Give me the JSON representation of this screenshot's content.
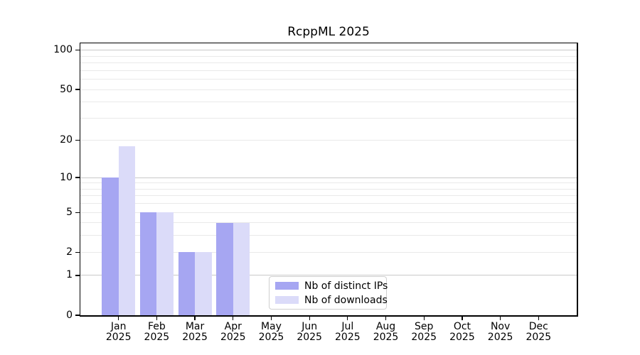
{
  "chart_data": {
    "type": "bar",
    "title": "RcppML 2025",
    "categories": [
      "Jan",
      "Feb",
      "Mar",
      "Apr",
      "May",
      "Jun",
      "Jul",
      "Aug",
      "Sep",
      "Oct",
      "Nov",
      "Dec"
    ],
    "category_sublabel": "2025",
    "series": [
      {
        "name": "Nb of distinct IPs",
        "color": "#a6a6f2",
        "values": [
          10,
          5,
          2,
          4,
          0,
          0,
          0,
          0,
          0,
          0,
          0,
          0
        ]
      },
      {
        "name": "Nb of downloads",
        "color": "#dbdbf9",
        "values": [
          18,
          5,
          2,
          4,
          0,
          0,
          0,
          0,
          0,
          0,
          0,
          0
        ]
      }
    ],
    "xlabel": "",
    "ylabel": "",
    "y_scale": "log10(1+y)",
    "y_ticks": [
      0,
      1,
      2,
      5,
      10,
      20,
      50,
      100
    ],
    "y_max": 113,
    "minor_gridlines": [
      2,
      3,
      4,
      5,
      6,
      7,
      8,
      9,
      20,
      30,
      40,
      50,
      60,
      70,
      80,
      90
    ],
    "major_gridlines": [
      1,
      10,
      100
    ],
    "grid": true,
    "legend": {
      "position": "lower center",
      "labels": [
        "Nb of distinct IPs",
        "Nb of downloads"
      ]
    },
    "colors": {
      "background": "#ffffff",
      "axis": "#000000",
      "grid_minor": "#e9e9e9",
      "grid_major": "#c9c9c9",
      "tick_label": "#000000"
    }
  }
}
